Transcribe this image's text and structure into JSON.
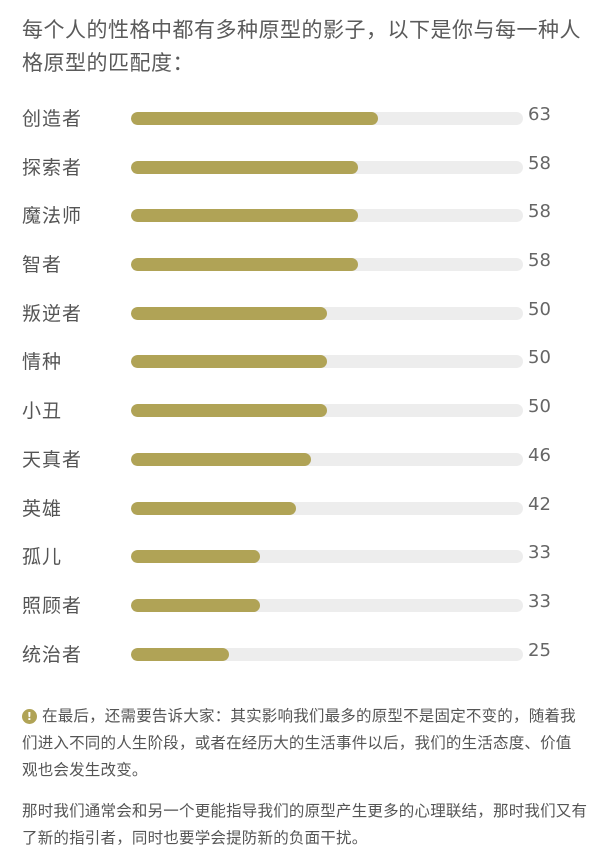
{
  "intro": "每个人的性格中都有多种原型的影子，以下是你与每一种人格原型的匹配度：",
  "chart_data": {
    "type": "bar",
    "orientation": "horizontal",
    "categories": [
      "创造者",
      "探索者",
      "魔法师",
      "智者",
      "叛逆者",
      "情种",
      "小丑",
      "天真者",
      "英雄",
      "孤儿",
      "照顾者",
      "统治者"
    ],
    "values": [
      63,
      58,
      58,
      58,
      50,
      50,
      50,
      46,
      42,
      33,
      33,
      25
    ],
    "xlim": [
      0,
      100
    ],
    "bar_color": "#b0a356",
    "track_color": "#ededed"
  },
  "note": {
    "icon": "exclamation-circle-icon",
    "text": "在最后，还需要告诉大家：其实影响我们最多的原型不是固定不变的，随着我们进入不同的人生阶段，或者在经历大的生活事件以后，我们的生活态度、价值观也会发生改变。"
  },
  "paragraph": "那时我们通常会和另一个更能指导我们的原型产生更多的心理联结，那时我们又有了新的指引者，同时也要学会提防新的负面干扰。"
}
